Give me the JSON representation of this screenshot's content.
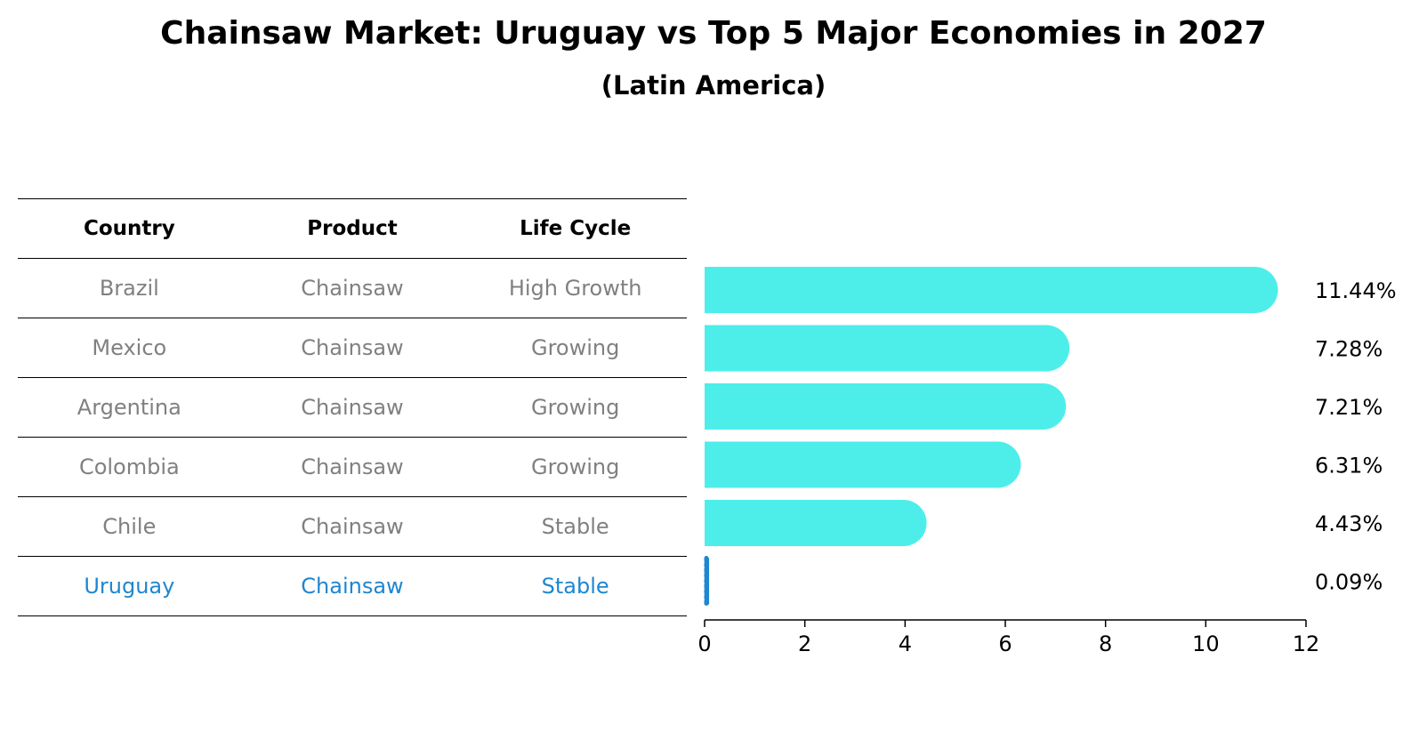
{
  "title": "Chainsaw Market: Uruguay vs Top 5 Major Economies in 2027",
  "subtitle": "(Latin America)",
  "table": {
    "headers": [
      "Country",
      "Product",
      "Life Cycle"
    ],
    "rows": [
      [
        "Brazil",
        "Chainsaw",
        "High Growth"
      ],
      [
        "Mexico",
        "Chainsaw",
        "Growing"
      ],
      [
        "Argentina",
        "Chainsaw",
        "Growing"
      ],
      [
        "Colombia",
        "Chainsaw",
        "Growing"
      ],
      [
        "Chile",
        "Chainsaw",
        "Stable"
      ],
      [
        "Uruguay",
        "Chainsaw",
        "Stable"
      ]
    ],
    "highlight_row": 5
  },
  "colors": {
    "bar": "#4deeea",
    "highlight": "#1f86d0",
    "table_text": "#808080"
  },
  "chart_data": {
    "type": "bar",
    "orientation": "horizontal",
    "categories": [
      "Brazil",
      "Mexico",
      "Argentina",
      "Colombia",
      "Chile",
      "Uruguay"
    ],
    "values": [
      11.44,
      7.28,
      7.21,
      6.31,
      4.43,
      0.09
    ],
    "value_labels": [
      "11.44%",
      "7.28%",
      "7.21%",
      "6.31%",
      "4.43%",
      "0.09%"
    ],
    "xlim": [
      0,
      12
    ],
    "xticks": [
      0,
      2,
      4,
      6,
      8,
      10,
      12
    ],
    "xlabel": "",
    "ylabel": "",
    "grid": false
  }
}
